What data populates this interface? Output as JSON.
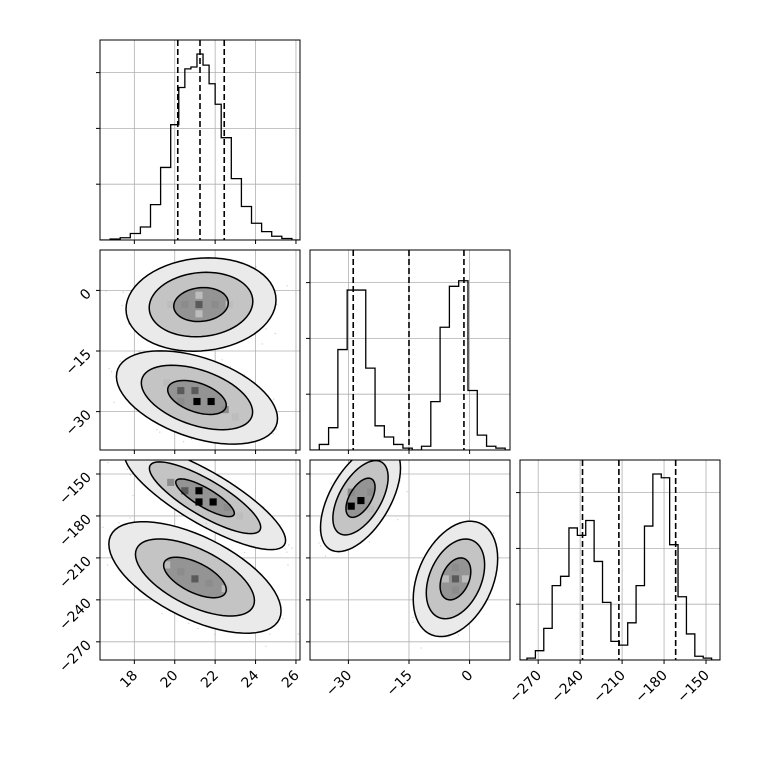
{
  "chart_data": {
    "type": "corner",
    "grid": true,
    "colors": {
      "line": "#000000",
      "grid": "#b0b0b0",
      "scatter": "#9a9a9a",
      "density": [
        "#e6e6e6",
        "#bdbdbd",
        "#8c8c8c",
        "#5a5a5a",
        "#000000"
      ]
    },
    "parameters": [
      {
        "range": [
          16.3,
          26.2
        ],
        "ticks": [
          18,
          20,
          22,
          24,
          26
        ],
        "tick_labels": [
          "18",
          "20",
          "22",
          "24",
          "26"
        ]
      },
      {
        "range": [
          -39.5,
          10.0
        ],
        "ticks": [
          -30,
          -15,
          0
        ],
        "tick_labels": [
          "−30",
          "−15",
          "0"
        ]
      },
      {
        "range": [
          -283,
          -140
        ],
        "ticks": [
          -270,
          -240,
          -210,
          -180,
          -150
        ],
        "tick_labels": [
          "−270",
          "−240",
          "−210",
          "−180",
          "−150"
        ]
      }
    ],
    "diagonal": [
      {
        "quantiles": [
          20.15,
          21.25,
          22.45
        ],
        "y_max": 1.0,
        "y_ticks": [
          0.3,
          0.6,
          0.9
        ],
        "bins": [
          [
            16.3,
            16.8,
            0.0
          ],
          [
            16.8,
            17.3,
            0.005
          ],
          [
            17.3,
            17.8,
            0.012
          ],
          [
            17.8,
            18.3,
            0.035
          ],
          [
            18.3,
            18.8,
            0.07
          ],
          [
            18.8,
            19.3,
            0.19
          ],
          [
            19.3,
            19.8,
            0.39
          ],
          [
            19.8,
            20.2,
            0.62
          ],
          [
            20.2,
            20.5,
            0.82
          ],
          [
            20.5,
            20.8,
            0.92
          ],
          [
            20.8,
            21.1,
            0.93
          ],
          [
            21.1,
            21.4,
            1.0
          ],
          [
            21.4,
            21.7,
            0.94
          ],
          [
            21.7,
            22.0,
            0.84
          ],
          [
            22.0,
            22.3,
            0.73
          ],
          [
            22.3,
            22.8,
            0.55
          ],
          [
            22.8,
            23.3,
            0.33
          ],
          [
            23.3,
            23.8,
            0.18
          ],
          [
            23.8,
            24.3,
            0.09
          ],
          [
            24.3,
            24.8,
            0.045
          ],
          [
            24.8,
            25.3,
            0.02
          ],
          [
            25.3,
            25.8,
            0.008
          ],
          [
            25.8,
            26.2,
            0.0
          ]
        ]
      },
      {
        "quantiles": [
          -28.8,
          -15.0,
          -1.4
        ],
        "y_max": 1.0,
        "y_ticks": [
          0.3,
          0.6,
          0.9
        ],
        "bins": [
          [
            -39.5,
            -37.2,
            0.0
          ],
          [
            -37.2,
            -34.9,
            0.03
          ],
          [
            -34.9,
            -32.6,
            0.12
          ],
          [
            -32.6,
            -30.3,
            0.54
          ],
          [
            -30.3,
            -28.0,
            0.86
          ],
          [
            -28.0,
            -25.7,
            0.86
          ],
          [
            -25.7,
            -23.4,
            0.44
          ],
          [
            -23.4,
            -21.1,
            0.13
          ],
          [
            -21.1,
            -18.8,
            0.07
          ],
          [
            -18.8,
            -16.5,
            0.03
          ],
          [
            -16.5,
            -14.2,
            0.01
          ],
          [
            -14.2,
            -11.9,
            0.0
          ],
          [
            -11.9,
            -9.6,
            0.02
          ],
          [
            -9.6,
            -7.3,
            0.26
          ],
          [
            -7.3,
            -5.0,
            0.66
          ],
          [
            -5.0,
            -2.7,
            0.88
          ],
          [
            -2.7,
            -0.4,
            0.91
          ],
          [
            -0.4,
            1.9,
            0.32
          ],
          [
            1.9,
            4.2,
            0.08
          ],
          [
            4.2,
            6.5,
            0.02
          ],
          [
            6.5,
            8.8,
            0.01
          ],
          [
            8.8,
            10.0,
            0.0
          ]
        ]
      },
      {
        "quantiles": [
          -238.3,
          -212.3,
          -171.7
        ],
        "y_max": 1.0,
        "y_ticks": [
          0.3,
          0.6,
          0.9
        ],
        "bins": [
          [
            -283,
            -278,
            0.0
          ],
          [
            -278,
            -272,
            0.01
          ],
          [
            -272,
            -266,
            0.05
          ],
          [
            -266,
            -260,
            0.17
          ],
          [
            -260,
            -254,
            0.4
          ],
          [
            -254,
            -248,
            0.45
          ],
          [
            -248,
            -242,
            0.71
          ],
          [
            -242,
            -236,
            0.67
          ],
          [
            -236,
            -230,
            0.75
          ],
          [
            -230,
            -224,
            0.53
          ],
          [
            -224,
            -218,
            0.31
          ],
          [
            -218,
            -212,
            0.1
          ],
          [
            -212,
            -206,
            0.08
          ],
          [
            -206,
            -200,
            0.2
          ],
          [
            -200,
            -194,
            0.4
          ],
          [
            -194,
            -188,
            0.72
          ],
          [
            -188,
            -182,
            1.0
          ],
          [
            -182,
            -176,
            0.98
          ],
          [
            -176,
            -170,
            0.62
          ],
          [
            -170,
            -164,
            0.34
          ],
          [
            -164,
            -158,
            0.14
          ],
          [
            -158,
            -152,
            0.02
          ],
          [
            -152,
            -146,
            0.01
          ],
          [
            -146,
            -140,
            0.0
          ]
        ]
      }
    ],
    "pairs": [
      {
        "row": 1,
        "col": 0,
        "clusters": [
          {
            "center": [
              21.3,
              -3.5
            ],
            "sd": [
              1.35,
              4.2
            ],
            "corr": 0.1,
            "levels": [
              1.0,
              1.9,
              2.75
            ],
            "dense": [
              [
                20.5,
                -3.5,
                2
              ],
              [
                21.2,
                -3.5,
                3
              ],
              [
                22.0,
                -3.5,
                2
              ],
              [
                21.2,
                -1.2,
                1
              ],
              [
                21.2,
                -5.8,
                1
              ],
              [
                19.8,
                -3.5,
                1
              ],
              [
                22.7,
                -3.5,
                1
              ]
            ]
          },
          {
            "center": [
              21.1,
              -26.5
            ],
            "sd": [
              1.45,
              4.2
            ],
            "corr": -0.45,
            "levels": [
              1.0,
              1.9,
              2.75
            ],
            "dense": [
              [
                20.3,
                -24.8,
                3
              ],
              [
                21.0,
                -24.8,
                3
              ],
              [
                21.1,
                -27.5,
                4
              ],
              [
                21.8,
                -27.5,
                4
              ],
              [
                20.3,
                -27.5,
                2
              ],
              [
                22.5,
                -29.5,
                2
              ],
              [
                19.6,
                -22.8,
                1
              ],
              [
                23.0,
                -31.3,
                1
              ]
            ]
          }
        ]
      },
      {
        "row": 2,
        "col": 0,
        "clusters": [
          {
            "center": [
              21.5,
              -167
            ],
            "sd": [
              1.45,
              13.5
            ],
            "corr": -0.82,
            "levels": [
              1.0,
              1.9,
              2.75
            ],
            "dense": [
              [
                20.5,
                -162,
                3
              ],
              [
                21.2,
                -162,
                4
              ],
              [
                21.2,
                -170,
                4
              ],
              [
                21.9,
                -170,
                4
              ],
              [
                22.6,
                -174,
                2
              ],
              [
                19.8,
                -156,
                2
              ],
              [
                23.2,
                -180,
                1
              ]
            ]
          },
          {
            "center": [
              21.0,
              -224
            ],
            "sd": [
              1.55,
              14.5
            ],
            "corr": -0.6,
            "levels": [
              1.0,
              1.9,
              2.75
            ],
            "dense": [
              [
                20.3,
                -220,
                2
              ],
              [
                21.0,
                -225,
                3
              ],
              [
                21.7,
                -228,
                2
              ],
              [
                19.6,
                -215,
                1
              ],
              [
                22.5,
                -232,
                1
              ]
            ]
          }
        ]
      },
      {
        "row": 2,
        "col": 1,
        "clusters": [
          {
            "center": [
              -27.0,
              -167
            ],
            "sd": [
              3.6,
              14.0
            ],
            "corr": 0.55,
            "levels": [
              1.0,
              1.9,
              2.75
            ],
            "dense": [
              [
                -29.3,
                -173,
                4
              ],
              [
                -26.9,
                -169,
                4
              ],
              [
                -24.5,
                -163,
                2
              ],
              [
                -29.3,
                -163,
                2
              ],
              [
                -24.5,
                -175,
                1
              ]
            ]
          },
          {
            "center": [
              -3.5,
              -225
            ],
            "sd": [
              3.8,
              15.0
            ],
            "corr": 0.35,
            "levels": [
              1.0,
              1.9,
              2.75
            ],
            "dense": [
              [
                -3.5,
                -225,
                3
              ],
              [
                -3.5,
                -217,
                2
              ],
              [
                -3.5,
                -233,
                2
              ],
              [
                -6.0,
                -225,
                1
              ],
              [
                -1.0,
                -225,
                1
              ]
            ]
          }
        ]
      }
    ]
  }
}
